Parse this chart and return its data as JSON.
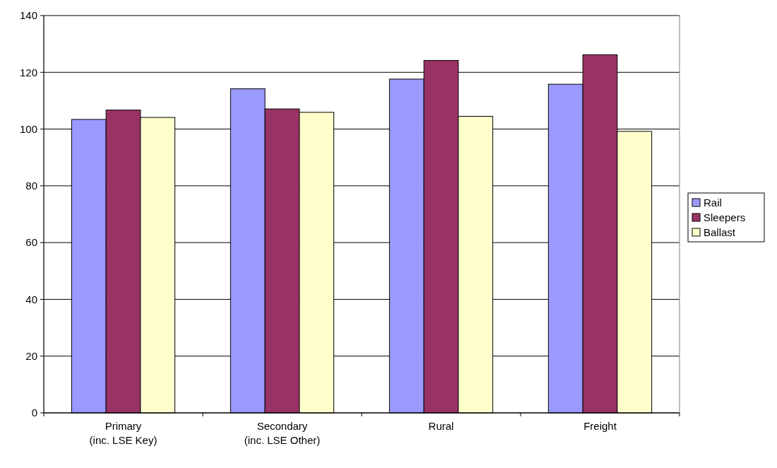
{
  "chart_data": {
    "type": "bar",
    "categories": [
      "Primary\n(inc. LSE Key)",
      "Secondary\n(inc. LSE Other)",
      "Rural",
      "Freight"
    ],
    "series": [
      {
        "name": "Rail",
        "color": "#9999ff",
        "values": [
          103.4,
          114.2,
          117.6,
          115.8
        ]
      },
      {
        "name": "Sleepers",
        "color": "#993366",
        "values": [
          106.7,
          107.1,
          124.2,
          126.2
        ]
      },
      {
        "name": "Ballast",
        "color": "#ffffcc",
        "values": [
          104.1,
          105.9,
          104.5,
          99.2
        ]
      }
    ],
    "ylim": [
      0,
      140
    ],
    "yticks": [
      0,
      20,
      40,
      60,
      80,
      100,
      120,
      140
    ],
    "grid": "y",
    "legend": "right"
  }
}
